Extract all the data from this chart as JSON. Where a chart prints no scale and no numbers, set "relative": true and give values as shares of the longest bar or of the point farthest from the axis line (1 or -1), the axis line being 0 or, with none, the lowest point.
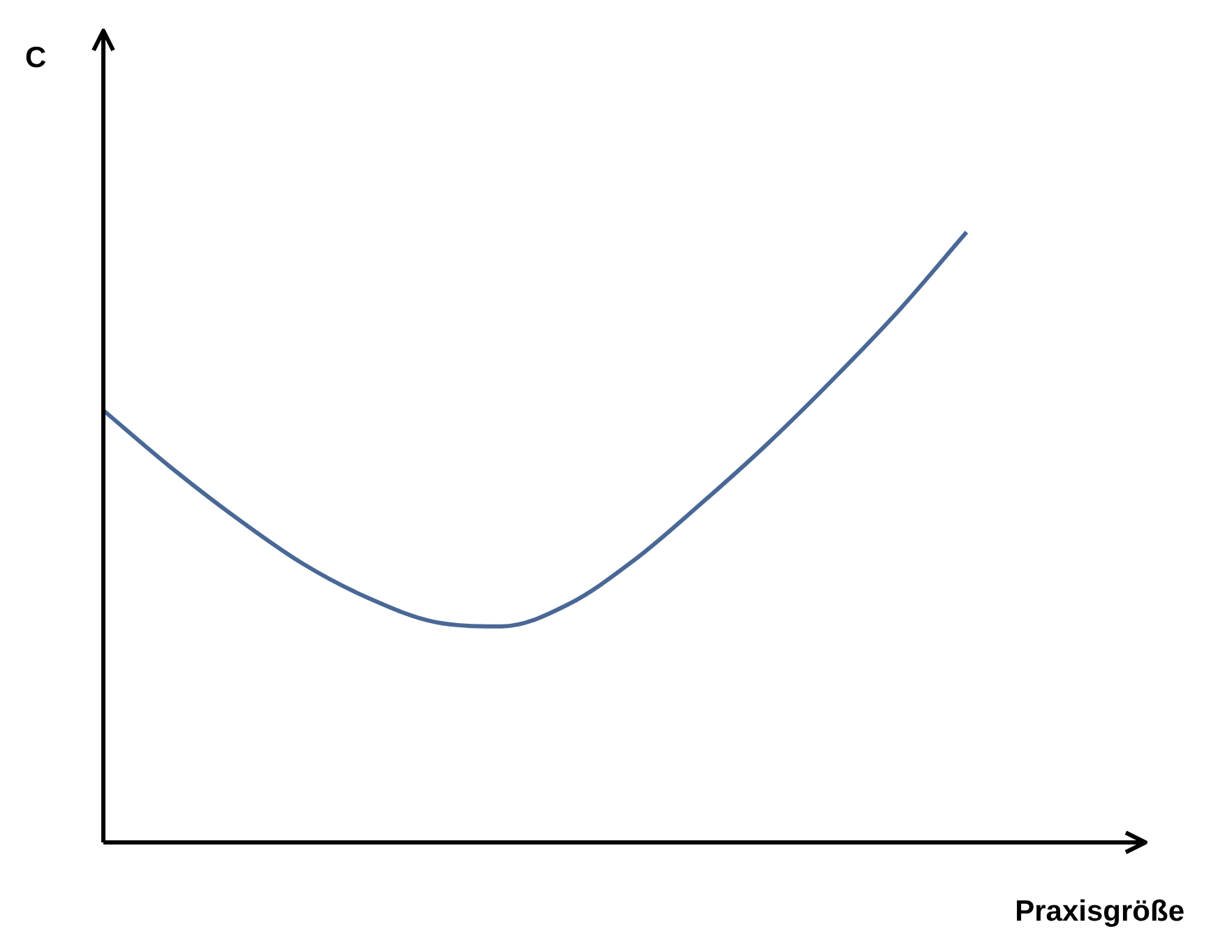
{
  "chart_data": {
    "type": "line",
    "relative": true,
    "xlabel": "Praxisgröße",
    "annotations": [
      "C"
    ],
    "categories": [
      null,
      null,
      null,
      null,
      null,
      null,
      null,
      null,
      null,
      null,
      null,
      null,
      null,
      null
    ],
    "series": [
      {
        "color": "#4a6896",
        "values": [
          0.708,
          0.616,
          0.532,
          0.457,
          0.4,
          0.361,
          0.354,
          0.39,
          0.463,
          0.555,
          0.653,
          0.76,
          0.874,
          1
        ]
      }
    ]
  }
}
